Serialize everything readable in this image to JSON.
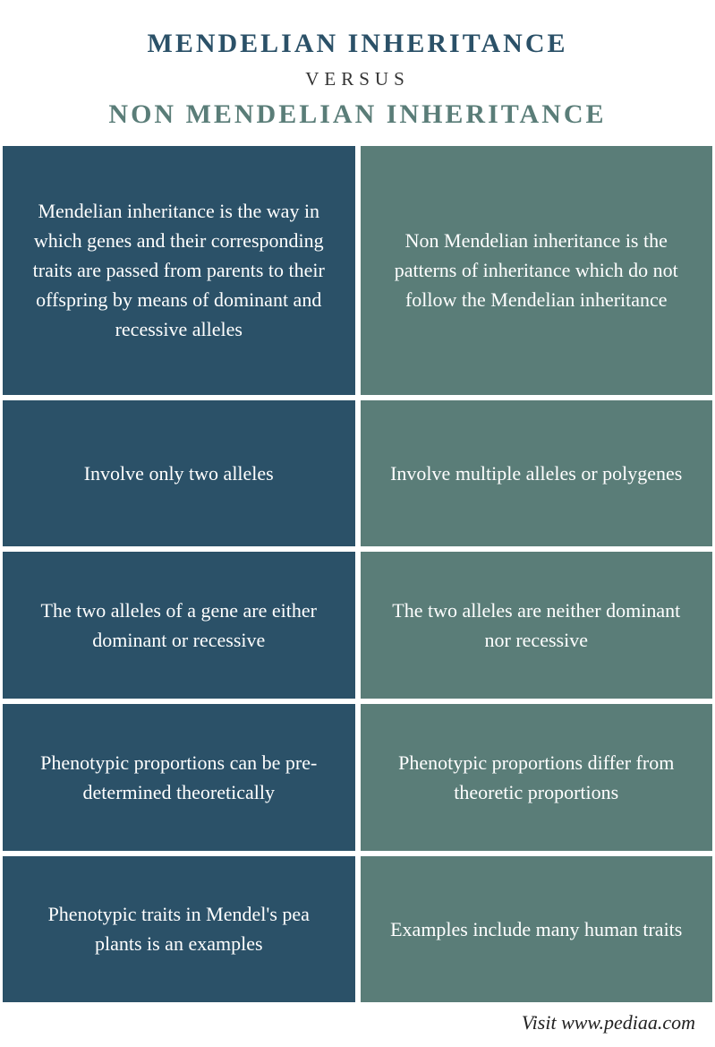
{
  "header": {
    "title_top": "MENDELIAN INHERITANCE",
    "versus": "VERSUS",
    "title_bottom": "NON MENDELIAN INHERITANCE",
    "title_top_color": "#2b5168",
    "title_bottom_color": "#5a7d78"
  },
  "columns": {
    "left_color": "#2b5168",
    "right_color": "#5a7d78"
  },
  "rows": [
    {
      "left": "Mendelian inheritance is the way in which genes and their corresponding traits are passed from parents to their offspring by means of dominant and recessive alleles",
      "right": "Non Mendelian inheritance is the patterns of inheritance which do not follow the Mendelian inheritance"
    },
    {
      "left": "Involve only two alleles",
      "right": "Involve multiple alleles or polygenes"
    },
    {
      "left": "The two alleles of a gene are either dominant or recessive",
      "right": "The two alleles are neither dominant nor recessive"
    },
    {
      "left": "Phenotypic proportions can be pre-determined theoretically",
      "right": "Phenotypic proportions differ from theoretic proportions"
    },
    {
      "left": "Phenotypic traits in Mendel's pea plants is an examples",
      "right": "Examples include many human traits"
    }
  ],
  "footer": "Visit www.pediaa.com"
}
